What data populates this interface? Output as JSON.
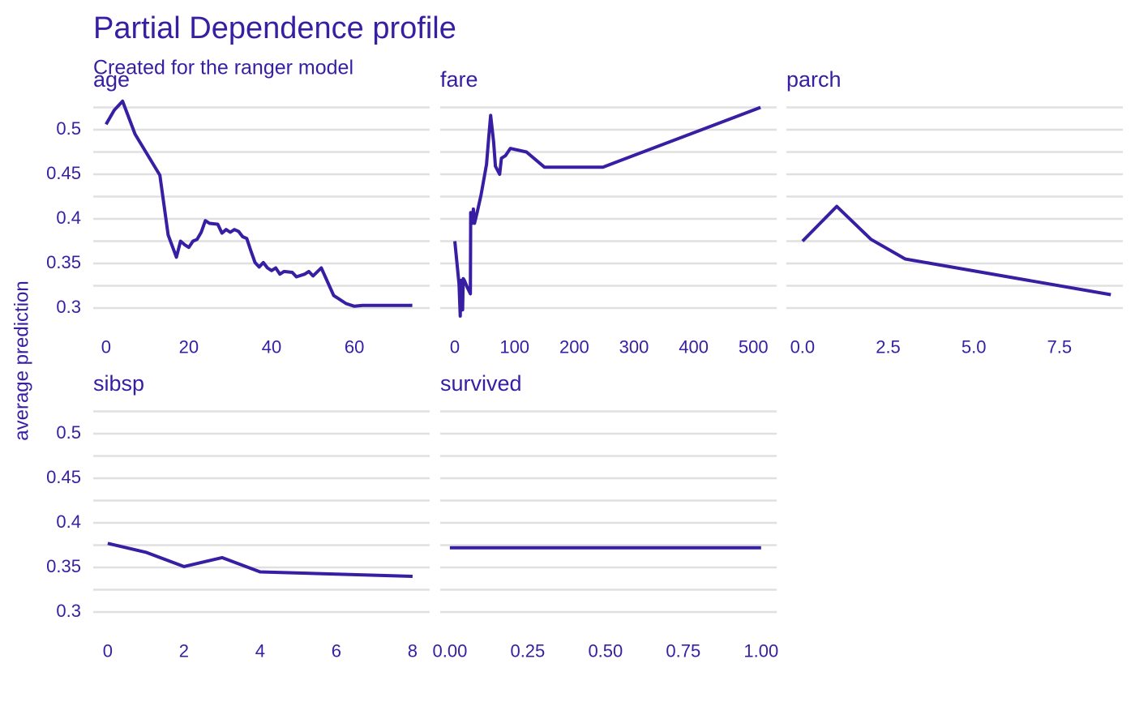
{
  "title": "Partial Dependence profile",
  "subtitle": "Created for the ranger model",
  "ylabel": "average prediction",
  "chart_data": [
    {
      "type": "line",
      "title": "age",
      "color": "#371ea3",
      "x": [
        0,
        2,
        4,
        7,
        13,
        15,
        17,
        18,
        19,
        20,
        21,
        22,
        23,
        24,
        25,
        27,
        28,
        29,
        30,
        31,
        32,
        33,
        34,
        35,
        36,
        37,
        38,
        39,
        40,
        41,
        42,
        43,
        45,
        46,
        48,
        49,
        50,
        52,
        55,
        58,
        60,
        62,
        74
      ],
      "values": [
        0.506,
        0.522,
        0.532,
        0.495,
        0.449,
        0.382,
        0.357,
        0.375,
        0.371,
        0.368,
        0.375,
        0.377,
        0.385,
        0.398,
        0.395,
        0.394,
        0.384,
        0.388,
        0.385,
        0.388,
        0.386,
        0.38,
        0.378,
        0.364,
        0.351,
        0.346,
        0.351,
        0.345,
        0.342,
        0.345,
        0.338,
        0.341,
        0.34,
        0.335,
        0.338,
        0.341,
        0.336,
        0.345,
        0.314,
        0.305,
        0.302,
        0.303,
        0.303
      ],
      "xlim": [
        -3.1,
        78.2
      ],
      "xticks": [
        0,
        20,
        40,
        60
      ],
      "ylim": [
        0.285,
        0.54
      ],
      "yticks": [
        0.3,
        0.35,
        0.4,
        0.45,
        0.5
      ],
      "minor_grid": [
        0.325,
        0.375,
        0.425,
        0.475,
        0.525
      ],
      "yticklabels": true
    },
    {
      "type": "line",
      "title": "fare",
      "color": "#371ea3",
      "x": [
        0,
        7,
        9,
        10,
        13,
        14,
        16,
        21,
        26,
        26.5,
        29,
        31,
        33,
        38,
        44,
        53,
        57,
        60,
        65,
        68,
        75,
        78,
        85,
        93,
        120,
        150,
        248,
        512
      ],
      "values": [
        0.375,
        0.327,
        0.291,
        0.331,
        0.298,
        0.333,
        0.331,
        0.323,
        0.316,
        0.407,
        0.395,
        0.411,
        0.395,
        0.409,
        0.427,
        0.461,
        0.493,
        0.516,
        0.486,
        0.459,
        0.45,
        0.468,
        0.471,
        0.479,
        0.475,
        0.458,
        0.458,
        0.525
      ],
      "xlim": [
        -24.5,
        539
      ],
      "xticks": [
        0,
        100,
        200,
        300,
        400,
        500
      ],
      "ylim": [
        0.285,
        0.54
      ],
      "yticks": [
        0.3,
        0.35,
        0.4,
        0.45,
        0.5
      ],
      "minor_grid": [
        0.325,
        0.375,
        0.425,
        0.475,
        0.525
      ],
      "yticklabels": false
    },
    {
      "type": "line",
      "title": "parch",
      "color": "#371ea3",
      "x": [
        0,
        1,
        2,
        3,
        9
      ],
      "values": [
        0.375,
        0.414,
        0.377,
        0.355,
        0.315
      ],
      "xlim": [
        -0.47,
        9.35
      ],
      "xticks": [
        {
          "value": 0,
          "label": "0.0"
        },
        2.5,
        {
          "value": 5,
          "label": "5.0"
        },
        7.5
      ],
      "ylim": [
        0.285,
        0.54
      ],
      "yticks": [
        0.3,
        0.35,
        0.4,
        0.45,
        0.5
      ],
      "minor_grid": [
        0.325,
        0.375,
        0.425,
        0.475,
        0.525
      ],
      "yticklabels": false
    },
    {
      "type": "line",
      "title": "sibsp",
      "color": "#371ea3",
      "x": [
        0,
        1,
        2,
        3,
        4,
        8
      ],
      "values": [
        0.377,
        0.367,
        0.351,
        0.361,
        0.345,
        0.34
      ],
      "xlim": [
        -0.38,
        8.45
      ],
      "xticks": [
        0,
        2,
        4,
        6,
        8
      ],
      "ylim": [
        0.285,
        0.54
      ],
      "yticks": [
        0.3,
        0.35,
        0.4,
        0.45,
        0.5
      ],
      "minor_grid": [
        0.325,
        0.375,
        0.425,
        0.475,
        0.525
      ],
      "yticklabels": true
    },
    {
      "type": "line",
      "title": "survived",
      "color": "#371ea3",
      "x": [
        0,
        1
      ],
      "values": [
        0.372,
        0.372
      ],
      "xlim": [
        -0.031,
        1.05
      ],
      "xticks": [
        {
          "value": 0,
          "label": "0.00"
        },
        0.25,
        {
          "value": 0.5,
          "label": "0.50"
        },
        0.75,
        {
          "value": 1,
          "label": "1.00"
        }
      ],
      "ylim": [
        0.285,
        0.54
      ],
      "yticks": [
        0.3,
        0.35,
        0.4,
        0.45,
        0.5
      ],
      "minor_grid": [
        0.325,
        0.375,
        0.425,
        0.475,
        0.525
      ],
      "yticklabels": false
    }
  ]
}
